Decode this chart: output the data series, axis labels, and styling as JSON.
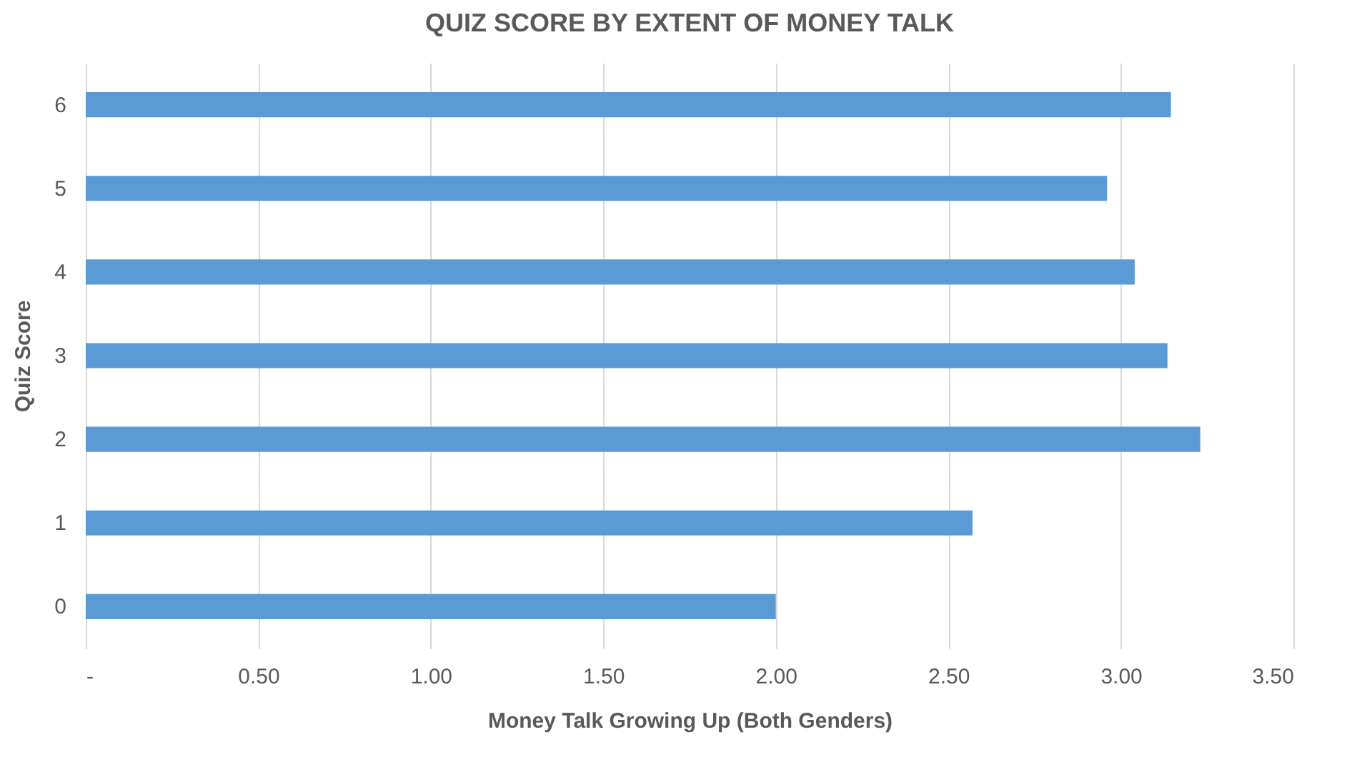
{
  "chart_data": {
    "type": "bar",
    "orientation": "horizontal",
    "title": "QUIZ SCORE BY EXTENT OF MONEY TALK",
    "xlabel": "Money Talk Growing Up (Both Genders)",
    "ylabel": "Quiz Score",
    "categories": [
      "6",
      "5",
      "4",
      "3",
      "2",
      "1",
      "0"
    ],
    "values": [
      3.145,
      2.96,
      3.04,
      3.135,
      3.23,
      2.57,
      2.0
    ],
    "color": "#5b9bd5",
    "xlim": [
      0,
      3.5
    ],
    "xticks": [
      {
        "value": 0,
        "label": "-"
      },
      {
        "value": 0.5,
        "label": "0.50"
      },
      {
        "value": 1,
        "label": "1.00"
      },
      {
        "value": 1.5,
        "label": "1.50"
      },
      {
        "value": 2,
        "label": "2.00"
      },
      {
        "value": 2.5,
        "label": "2.50"
      },
      {
        "value": 3,
        "label": "3.00"
      },
      {
        "value": 3.5,
        "label": "3.50"
      }
    ],
    "grid": "x"
  }
}
